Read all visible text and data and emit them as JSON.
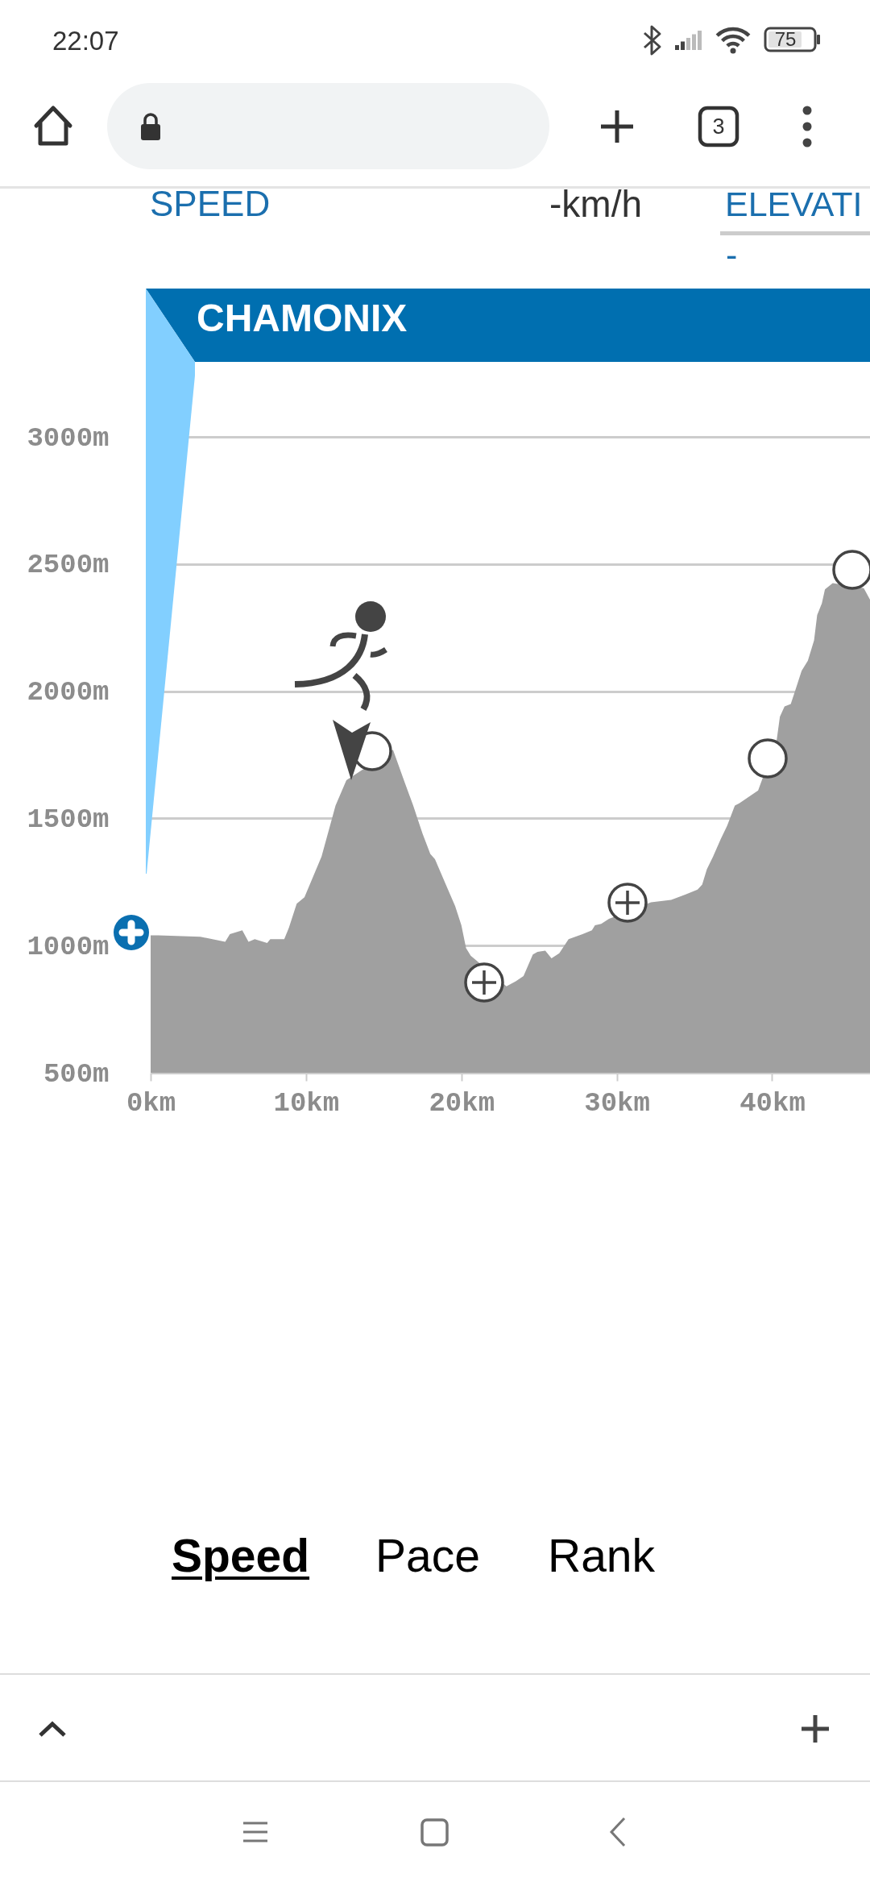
{
  "chart_data": {
    "type": "area",
    "annotations": [
      "22:07",
      "75",
      "3",
      "SPEED",
      "-km/h",
      "ELEVATI",
      "-",
      "CHAMONIX",
      "Speed",
      "Pace",
      "Rank"
    ],
    "x": [
      0,
      0.5,
      3.2,
      4.8,
      5.1,
      5.9,
      6.3,
      6.7,
      7.5,
      7.7,
      8.6,
      8.9,
      9.4,
      9.9,
      11.0,
      11.9,
      12.6,
      15.6,
      16.3,
      16.9,
      17.5,
      18.0,
      18.3,
      19.0,
      19.6,
      20.0,
      20.3,
      20.6,
      21.0,
      22.9,
      23.5,
      24.0,
      24.6,
      24.9,
      25.4,
      25.8,
      26.3,
      26.9,
      27.8,
      28.4,
      28.6,
      29.0,
      29.5,
      32.2,
      33.5,
      34.4,
      35.2,
      35.5,
      35.8,
      36.2,
      36.7,
      37.1,
      37.6,
      37.9,
      39.1,
      40.3,
      40.5,
      40.8,
      41.2,
      41.5,
      41.9,
      42.3,
      42.7,
      42.9,
      43.2,
      43.4,
      43.9,
      45.9,
      46.3
    ],
    "values": [
      1040,
      1040,
      1035,
      1015,
      1045,
      1060,
      1015,
      1025,
      1010,
      1025,
      1025,
      1070,
      1165,
      1190,
      1350,
      1550,
      1650,
      1770,
      1650,
      1550,
      1440,
      1360,
      1340,
      1240,
      1155,
      1080,
      990,
      960,
      940,
      840,
      860,
      880,
      965,
      975,
      980,
      950,
      970,
      1025,
      1045,
      1060,
      1080,
      1085,
      1105,
      1170,
      1180,
      1200,
      1220,
      1240,
      1300,
      1350,
      1420,
      1470,
      1550,
      1560,
      1610,
      1810,
      1900,
      1940,
      1950,
      2005,
      2080,
      2120,
      2200,
      2300,
      2345,
      2400,
      2425,
      2405,
      2360
    ],
    "color": "#a0a0a0",
    "xlim": [
      0,
      46.3
    ],
    "xticks": [
      {
        "value": 0,
        "label": "0km"
      },
      {
        "value": 10,
        "label": "10km"
      },
      {
        "value": 20,
        "label": "20km"
      },
      {
        "value": 30,
        "label": "30km"
      },
      {
        "value": 40,
        "label": "40km"
      }
    ],
    "ylim": [
      500,
      3000
    ],
    "yticks": [
      {
        "value": 500,
        "label": "500m"
      },
      {
        "value": 1000,
        "label": "1000m"
      },
      {
        "value": 1500,
        "label": "1500m"
      },
      {
        "value": 2000,
        "label": "2000m"
      },
      {
        "value": 2500,
        "label": "2500m"
      },
      {
        "value": 3000,
        "label": "3000m"
      }
    ],
    "grid": "y"
  }
}
